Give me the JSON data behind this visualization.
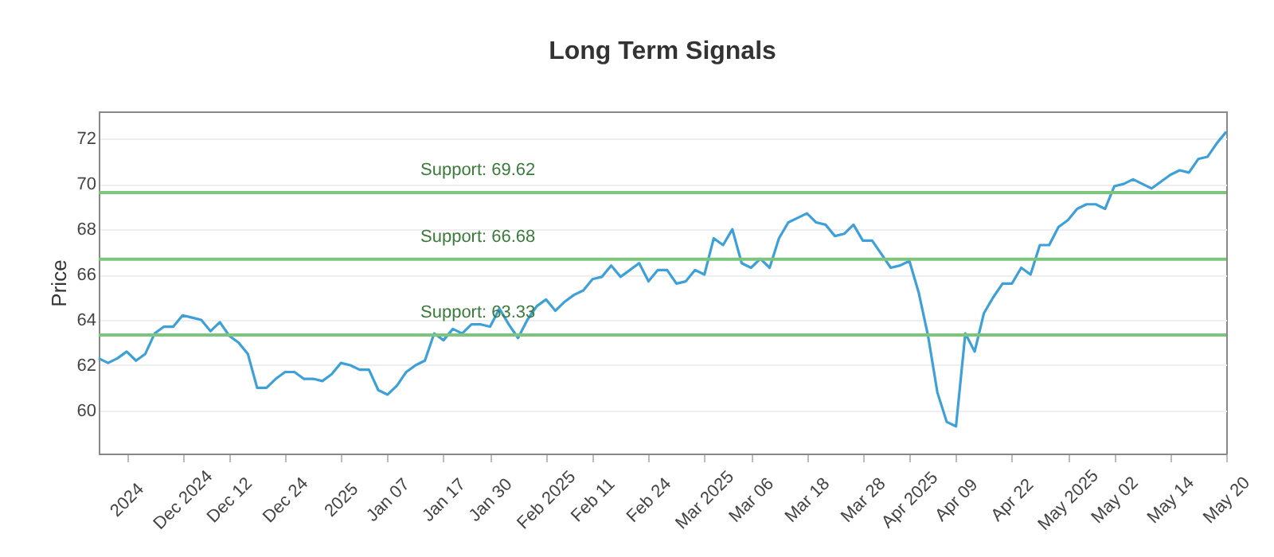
{
  "chart_data": {
    "type": "line",
    "title": "Long Term Signals",
    "ylabel": "Price",
    "categories": [
      null,
      null,
      null,
      "2024",
      null,
      null,
      null,
      null,
      null,
      "Dec 2024",
      null,
      null,
      null,
      null,
      "Dec 12",
      null,
      null,
      null,
      null,
      null,
      "Dec 24",
      null,
      null,
      null,
      null,
      null,
      "2025",
      null,
      null,
      null,
      null,
      "Jan 07",
      null,
      null,
      null,
      null,
      null,
      "Jan 17",
      null,
      null,
      null,
      null,
      "Jan 30",
      null,
      null,
      null,
      null,
      null,
      "Feb 2025",
      null,
      null,
      null,
      null,
      "Feb 11",
      null,
      null,
      null,
      null,
      null,
      "Feb 24",
      null,
      null,
      null,
      null,
      null,
      "Mar 2025",
      null,
      null,
      null,
      null,
      "Mar 06",
      null,
      null,
      null,
      null,
      null,
      "Mar 18",
      null,
      null,
      null,
      null,
      null,
      "Mar 28",
      null,
      null,
      null,
      null,
      "Apr 2025",
      null,
      null,
      null,
      null,
      "Apr 09",
      null,
      null,
      null,
      null,
      null,
      "Apr 22",
      null,
      null,
      null,
      null,
      null,
      "May 2025",
      null,
      null,
      null,
      null,
      "May 02",
      null,
      null,
      null,
      null,
      null,
      "May 14",
      null,
      null,
      null,
      null,
      null,
      "May 20"
    ],
    "series": [
      {
        "color": "#3ea0d8",
        "values": [
          62.3,
          62.1,
          62.3,
          62.6,
          62.2,
          62.5,
          63.4,
          63.7,
          63.7,
          64.2,
          64.1,
          64.0,
          63.5,
          63.9,
          63.3,
          63.0,
          62.5,
          61.0,
          61.0,
          61.4,
          61.7,
          61.7,
          61.4,
          61.4,
          61.3,
          61.6,
          62.1,
          62.0,
          61.8,
          61.8,
          60.9,
          60.7,
          61.1,
          61.7,
          62.0,
          62.2,
          63.4,
          63.1,
          63.6,
          63.4,
          63.8,
          63.8,
          63.7,
          64.5,
          63.8,
          63.2,
          64.0,
          64.6,
          64.9,
          64.4,
          64.8,
          65.1,
          65.3,
          65.8,
          65.9,
          66.4,
          65.9,
          66.2,
          66.5,
          65.7,
          66.2,
          66.2,
          65.6,
          65.7,
          66.2,
          66.0,
          67.6,
          67.3,
          68.0,
          66.5,
          66.3,
          66.7,
          66.3,
          67.6,
          68.3,
          68.5,
          68.7,
          68.3,
          68.2,
          67.7,
          67.8,
          68.2,
          67.5,
          67.5,
          66.9,
          66.3,
          66.4,
          66.6,
          65.2,
          63.3,
          60.8,
          59.5,
          59.3,
          63.4,
          62.6,
          64.3,
          65.0,
          65.6,
          65.6,
          66.3,
          66.0,
          67.3,
          67.3,
          68.1,
          68.4,
          68.9,
          69.1,
          69.1,
          68.9,
          69.9,
          70.0,
          70.2,
          70.0,
          69.8,
          70.1,
          70.4,
          70.6,
          70.5,
          71.1,
          71.2,
          71.8,
          72.3
        ]
      }
    ],
    "ylim": [
      58.1,
      73.2
    ],
    "yticks": [
      60,
      62,
      64,
      66,
      68,
      70,
      72
    ],
    "grid": "y",
    "ref_lines": [
      {
        "axis": "y",
        "value": 69.62,
        "label": "Support: 69.62",
        "color": "#7dc47d"
      },
      {
        "axis": "y",
        "value": 66.68,
        "label": "Support: 66.68",
        "color": "#7dc47d"
      },
      {
        "axis": "y",
        "value": 63.33,
        "label": "Support: 63.33",
        "color": "#7dc47d"
      }
    ]
  }
}
